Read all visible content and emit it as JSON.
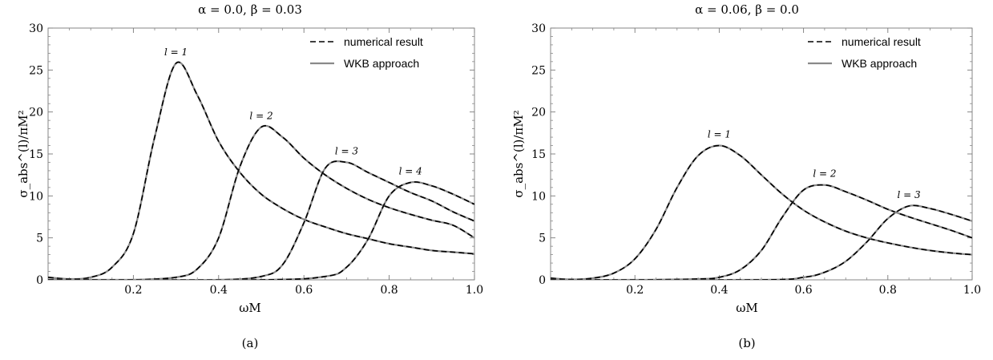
{
  "chart_data": [
    {
      "type": "line",
      "title": "α = 0.0,   β = 0.03",
      "xlabel": "ωM",
      "ylabel": "σ_abs^(l)/πM²",
      "caption": "(a)",
      "xlim": [
        0.0,
        1.0
      ],
      "ylim": [
        0,
        30
      ],
      "xticks": [
        0.2,
        0.4,
        0.6,
        0.8,
        1.0
      ],
      "xtick_labels": [
        "0.2",
        "0.4",
        "0.6",
        "0.8",
        "1.0"
      ],
      "yticks": [
        0,
        5,
        10,
        15,
        20,
        25,
        30
      ],
      "ytick_labels": [
        "0",
        "5",
        "10",
        "15",
        "20",
        "25",
        "30"
      ],
      "grid": false,
      "legend": {
        "position": "top-right",
        "entries": [
          {
            "label": "numerical result",
            "style": "dashed"
          },
          {
            "label": "WKB approach",
            "style": "solid"
          }
        ]
      },
      "series": [
        {
          "annotation": "l = 1",
          "x": [
            0.0,
            0.05,
            0.1,
            0.15,
            0.2,
            0.25,
            0.3,
            0.35,
            0.4,
            0.45,
            0.5,
            0.55,
            0.6,
            0.65,
            0.7,
            0.75,
            0.8,
            0.85,
            0.9,
            0.95,
            1.0
          ],
          "values": [
            0.3,
            0.1,
            0.3,
            1.5,
            5.5,
            17.0,
            25.8,
            22.0,
            16.5,
            12.8,
            10.2,
            8.5,
            7.2,
            6.3,
            5.5,
            4.9,
            4.3,
            3.9,
            3.5,
            3.3,
            3.1
          ]
        },
        {
          "annotation": "l = 2",
          "x": [
            0.0,
            0.1,
            0.2,
            0.3,
            0.35,
            0.4,
            0.45,
            0.5,
            0.55,
            0.6,
            0.65,
            0.7,
            0.75,
            0.8,
            0.85,
            0.9,
            0.95,
            1.0
          ],
          "values": [
            0.0,
            0.0,
            0.0,
            0.3,
            1.3,
            5.0,
            13.5,
            18.2,
            17.0,
            14.5,
            12.5,
            10.9,
            9.6,
            8.6,
            7.8,
            7.1,
            6.5,
            5.0
          ]
        },
        {
          "annotation": "l = 3",
          "x": [
            0.0,
            0.2,
            0.4,
            0.5,
            0.55,
            0.6,
            0.65,
            0.7,
            0.75,
            0.8,
            0.85,
            0.9,
            0.95,
            1.0
          ],
          "values": [
            0.0,
            0.0,
            0.0,
            0.4,
            1.8,
            6.8,
            13.3,
            14.0,
            12.8,
            11.6,
            10.4,
            9.4,
            8.1,
            7.0
          ]
        },
        {
          "annotation": "l = 4",
          "x": [
            0.0,
            0.5,
            0.65,
            0.7,
            0.75,
            0.8,
            0.85,
            0.9,
            0.95,
            1.0
          ],
          "values": [
            0.0,
            0.0,
            0.4,
            1.5,
            4.8,
            10.0,
            11.6,
            11.2,
            10.2,
            9.0
          ]
        }
      ]
    },
    {
      "type": "line",
      "title": "α = 0.06,   β = 0.0",
      "xlabel": "ωM",
      "ylabel": "σ_abs^(l)/πM²",
      "caption": "(b)",
      "xlim": [
        0.0,
        1.0
      ],
      "ylim": [
        0,
        30
      ],
      "xticks": [
        0.2,
        0.4,
        0.6,
        0.8,
        1.0
      ],
      "xtick_labels": [
        "0.2",
        "0.4",
        "0.6",
        "0.8",
        "1.0"
      ],
      "yticks": [
        0,
        5,
        10,
        15,
        20,
        25,
        30
      ],
      "ytick_labels": [
        "0",
        "5",
        "10",
        "15",
        "20",
        "25",
        "30"
      ],
      "grid": false,
      "legend": {
        "position": "top-right",
        "entries": [
          {
            "label": "numerical result",
            "style": "dashed"
          },
          {
            "label": "WKB approach",
            "style": "solid"
          }
        ]
      },
      "series": [
        {
          "annotation": "l = 1",
          "x": [
            0.0,
            0.05,
            0.1,
            0.15,
            0.2,
            0.25,
            0.3,
            0.35,
            0.4,
            0.45,
            0.5,
            0.55,
            0.6,
            0.65,
            0.7,
            0.75,
            0.8,
            0.85,
            0.9,
            0.95,
            1.0
          ],
          "values": [
            0.2,
            0.05,
            0.2,
            0.8,
            2.5,
            6.0,
            11.0,
            14.8,
            16.0,
            14.8,
            12.5,
            10.2,
            8.3,
            6.9,
            5.8,
            5.0,
            4.4,
            3.9,
            3.5,
            3.2,
            3.0
          ]
        },
        {
          "annotation": "l = 2",
          "x": [
            0.0,
            0.2,
            0.35,
            0.4,
            0.45,
            0.5,
            0.55,
            0.6,
            0.65,
            0.7,
            0.75,
            0.8,
            0.85,
            0.9,
            0.95,
            1.0
          ],
          "values": [
            0.0,
            0.0,
            0.1,
            0.3,
            1.2,
            3.5,
            7.5,
            10.7,
            11.3,
            10.5,
            9.5,
            8.4,
            7.5,
            6.7,
            5.9,
            5.0
          ]
        },
        {
          "annotation": "l = 3",
          "x": [
            0.0,
            0.5,
            0.6,
            0.65,
            0.7,
            0.75,
            0.8,
            0.85,
            0.9,
            0.95,
            1.0
          ],
          "values": [
            0.0,
            0.0,
            0.3,
            0.9,
            2.2,
            4.5,
            7.3,
            8.8,
            8.5,
            7.8,
            7.0
          ]
        }
      ]
    }
  ]
}
